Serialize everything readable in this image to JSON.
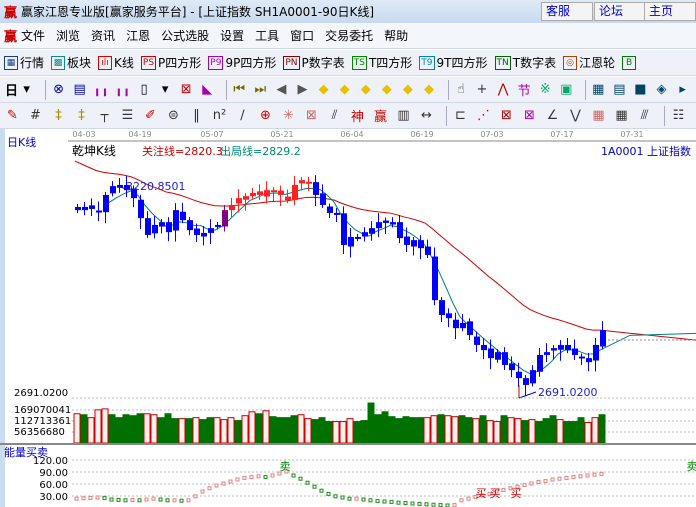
{
  "window": {
    "logo": "赢",
    "title": "赢家江恩专业版[赢家服务平台] - [上证指数  SH1A0001-90日K线]",
    "buttons": [
      "客服",
      "论坛",
      "主页"
    ]
  },
  "menu": {
    "logo": "赢",
    "items": [
      "文件",
      "浏览",
      "资讯",
      "江恩",
      "公式选股",
      "设置",
      "工具",
      "窗口",
      "交易委托",
      "帮助"
    ]
  },
  "toolbar1": [
    {
      "icon": "table-icon",
      "glyph": "▦",
      "color": "#1a3c8c",
      "label": "行情"
    },
    {
      "icon": "blocks-icon",
      "glyph": "▩",
      "color": "#0a8c8c",
      "label": "板块"
    },
    {
      "icon": "kline-icon",
      "glyph": "ılı",
      "color": "#d00",
      "label": "K线"
    },
    {
      "icon": "ps-icon",
      "glyph": "PS",
      "color": "#c00",
      "label": "P四方形"
    },
    {
      "icon": "p9-icon",
      "glyph": "P9",
      "color": "#a0a",
      "label": "9P四方形"
    },
    {
      "icon": "pn-icon",
      "glyph": "PN",
      "color": "#800",
      "label": "P数字表"
    },
    {
      "icon": "ts-icon",
      "glyph": "TS",
      "color": "#080",
      "label": "T四方形"
    },
    {
      "icon": "t9-icon",
      "glyph": "T9",
      "color": "#08a",
      "label": "9T四方形"
    },
    {
      "icon": "tn-icon",
      "glyph": "TN",
      "color": "#060",
      "label": "T数字表"
    },
    {
      "icon": "gann-wheel-icon",
      "glyph": "◎",
      "color": "#a40",
      "label": "江恩轮"
    },
    {
      "icon": "big-icon",
      "glyph": "B",
      "color": "#070",
      "label": ""
    }
  ],
  "toolbar2": {
    "period": "日",
    "icons": [
      {
        "name": "period-dropdown-icon",
        "g": "▾",
        "c": "#000"
      },
      {
        "name": "link-icon",
        "g": "⊗",
        "c": "#00a"
      },
      {
        "name": "notes-icon",
        "g": "▤",
        "c": "#00a"
      },
      {
        "name": "chart3-icon",
        "g": "╻╻",
        "c": "#a0a"
      },
      {
        "name": "chart9-icon",
        "g": "╻╻",
        "c": "#a0a"
      },
      {
        "name": "candle-icon",
        "g": "▯",
        "c": "#000"
      },
      {
        "name": "candle-dropdown-icon",
        "g": "▾",
        "c": "#000"
      },
      {
        "name": "tool-icon",
        "g": "⊠",
        "c": "#c00"
      },
      {
        "name": "draw-line-icon",
        "g": "◣",
        "c": "#a0a"
      },
      {
        "name": "first-icon",
        "g": "⏮",
        "c": "#6a6a00"
      },
      {
        "name": "last-icon",
        "g": "⏭",
        "c": "#6a6a00"
      },
      {
        "name": "prev-icon",
        "g": "◀",
        "c": "#555"
      },
      {
        "name": "next-icon",
        "g": "▶",
        "c": "#555"
      },
      {
        "name": "shift-left-icon",
        "g": "◆",
        "c": "#e8c000"
      },
      {
        "name": "shift-right-icon",
        "g": "◆",
        "c": "#e8c000"
      },
      {
        "name": "expand-icon",
        "g": "◆",
        "c": "#e8c000"
      },
      {
        "name": "shrink-icon",
        "g": "◆",
        "c": "#e8c000"
      },
      {
        "name": "zoom-in-icon",
        "g": "◆",
        "c": "#e8c000"
      },
      {
        "name": "zoom-out-icon",
        "g": "◆",
        "c": "#e8c000"
      },
      {
        "name": "hand-icon",
        "g": "☝",
        "c": "#333"
      },
      {
        "name": "crosshair-icon",
        "g": "+",
        "c": "#333"
      },
      {
        "name": "zigzag-icon",
        "g": "⋀",
        "c": "#a00"
      },
      {
        "name": "section-icon",
        "g": "节",
        "c": "#a0a"
      },
      {
        "name": "pattern-icon",
        "g": "※",
        "c": "#0a6"
      },
      {
        "name": "calendar-icon",
        "g": "▣",
        "c": "#0a6"
      },
      {
        "name": "calculator-icon",
        "g": "▦",
        "c": "#046"
      },
      {
        "name": "report-icon",
        "g": "▤",
        "c": "#046"
      },
      {
        "name": "save-icon",
        "g": "■",
        "c": "#046"
      },
      {
        "name": "network-icon",
        "g": "◈",
        "c": "#046"
      },
      {
        "name": "more-icon",
        "g": "▸",
        "c": "#046"
      }
    ]
  },
  "toolbar3": [
    {
      "name": "pen-icon",
      "g": "✎",
      "c": "#c00"
    },
    {
      "name": "grid-icon",
      "g": "#",
      "c": "#333"
    },
    {
      "name": "gold1-icon",
      "g": "‡",
      "c": "#a80"
    },
    {
      "name": "gold2-icon",
      "g": "‡",
      "c": "#a80"
    },
    {
      "name": "fib-icon",
      "g": "┬",
      "c": "#333"
    },
    {
      "name": "spiral-icon",
      "g": "☰",
      "c": "#333"
    },
    {
      "name": "brush-icon",
      "g": "✐",
      "c": "#c00"
    },
    {
      "name": "circle-icon",
      "g": "⊜",
      "c": "#333"
    },
    {
      "name": "lines-icon",
      "g": "‖",
      "c": "#333"
    },
    {
      "name": "n2-icon",
      "g": "n²",
      "c": "#333"
    },
    {
      "name": "angle-icon",
      "g": "∕",
      "c": "#333"
    },
    {
      "name": "target-icon",
      "g": "⊕",
      "c": "#c00"
    },
    {
      "name": "star-icon",
      "g": "✳",
      "c": "#c66"
    },
    {
      "name": "box-icon",
      "g": "⊠",
      "c": "#c66"
    },
    {
      "name": "fan-icon",
      "g": "⫽",
      "c": "#333"
    },
    {
      "name": "god-icon",
      "g": "神",
      "c": "#c00"
    },
    {
      "name": "win-icon",
      "g": "赢",
      "c": "#c00"
    },
    {
      "name": "ruler-icon",
      "g": "▥",
      "c": "#333"
    },
    {
      "name": "measure-icon",
      "g": "↔",
      "c": "#333"
    },
    {
      "name": "rect-icon",
      "g": "⊏",
      "c": "#333"
    },
    {
      "name": "gann-fan-icon",
      "g": "⋰",
      "c": "#c00"
    },
    {
      "name": "gann-box-icon",
      "g": "⊠",
      "c": "#a00"
    },
    {
      "name": "gann-grid-icon",
      "g": "⊠",
      "c": "#a0a"
    },
    {
      "name": "angle-line-icon",
      "g": "∠",
      "c": "#333"
    },
    {
      "name": "wave-icon",
      "g": "⋁",
      "c": "#333"
    },
    {
      "name": "square-grid-icon",
      "g": "▦",
      "c": "#c66"
    },
    {
      "name": "sq-grid2-icon",
      "g": "▦",
      "c": "#333"
    },
    {
      "name": "parallel-icon",
      "g": "⫻",
      "c": "#333"
    },
    {
      "name": "list-icon",
      "g": "☷",
      "c": "#333"
    }
  ],
  "chart": {
    "period_label": "日K线",
    "indicator_name": "乾坤K线",
    "focus_line": "关注线=2820.3",
    "exit_line": "出局线=2829.2",
    "symbol": "1A0001  上证指数",
    "dates": [
      "04-03",
      "04-19",
      "05-07",
      "05-21",
      "06-04",
      "06-19",
      "07-03",
      "07-17",
      "07-31"
    ],
    "high_label": "3220.8501",
    "low_label": "2691.0200",
    "price_axis_label": "2691.0200",
    "volume_axis": [
      "169070041",
      "112713361",
      "56356680"
    ],
    "energy_title": "能量买卖",
    "energy_axis": [
      "120.00",
      "90.00",
      "60.00",
      "30.00"
    ],
    "sell_label": "卖",
    "buy_label": "买",
    "colors": {
      "up": "#ff2020",
      "down": "#0000ff",
      "turn": "#800080",
      "short_ma": "#008080",
      "long_ma": "#d00000",
      "vol_up": "#cc0000",
      "vol_down": "#007000"
    }
  },
  "chart_data": {
    "type": "candlestick",
    "close": [
      3158,
      3166,
      3161,
      3153,
      3196,
      3218,
      3221,
      3208,
      3188,
      3138,
      3096,
      3121,
      3128,
      3103,
      3158,
      3133,
      3108,
      3096,
      3101,
      3113,
      3121,
      3158,
      3171,
      3188,
      3193,
      3201,
      3196,
      3208,
      3203,
      3196,
      3183,
      3221,
      3233,
      3228,
      3196,
      3171,
      3151,
      3146,
      3071,
      3091,
      3088,
      3103,
      3113,
      3128,
      3126,
      3128,
      3088,
      3071,
      3083,
      3063,
      3046,
      2933,
      2896,
      2888,
      2863,
      2876,
      2846,
      2821,
      2808,
      2788,
      2803,
      2771,
      2758,
      2738,
      2721,
      2758,
      2796,
      2803,
      2813,
      2821,
      2808,
      2796,
      2788,
      2778,
      2821,
      2858
    ],
    "trend": "bbbbbbbbbbbbbbbbbbbbbprrrrrrrrrrrrbbbbbbbbbbbbbbbbbbbbbbbbbbbbbbbbbbbbbbbbbbpr",
    "volume": [
      150,
      145,
      130,
      170,
      175,
      145,
      130,
      145,
      140,
      150,
      150,
      145,
      130,
      150,
      125,
      125,
      125,
      130,
      120,
      130,
      130,
      120,
      130,
      115,
      140,
      160,
      150,
      165,
      135,
      130,
      130,
      140,
      145,
      125,
      120,
      130,
      110,
      110,
      110,
      125,
      110,
      115,
      205,
      145,
      160,
      135,
      125,
      135,
      130,
      130,
      130,
      140,
      145,
      140,
      135,
      140,
      130,
      125,
      140,
      115,
      110,
      140,
      130,
      125,
      115,
      120,
      110,
      125,
      140,
      120,
      110,
      110,
      130,
      105,
      130,
      145
    ],
    "volume_up": "rgrrrgggggrrgggrgrggrrrgrrgrggggrrgggrrrggggggggggrrgrrggrgrrgrrgrgggrgggrr",
    "energy": [
      22,
      23,
      24,
      25,
      24,
      20,
      19,
      18,
      19,
      18,
      20,
      22,
      20,
      18,
      18,
      17,
      18,
      28,
      40,
      48,
      55,
      60,
      65,
      70,
      74,
      76,
      78,
      76,
      80,
      85,
      90,
      80,
      72,
      62,
      52,
      42,
      34,
      28,
      25,
      22,
      22,
      20,
      18,
      16,
      15,
      14,
      12,
      11,
      10,
      9,
      8,
      7,
      6,
      5,
      6,
      18,
      22,
      26,
      30,
      34,
      40,
      44,
      48,
      52,
      56,
      60,
      64,
      66,
      70,
      72,
      74,
      76,
      78,
      80,
      82,
      84
    ],
    "sell_signals": [
      30
    ],
    "buy_signals": [
      58,
      60,
      63
    ]
  }
}
